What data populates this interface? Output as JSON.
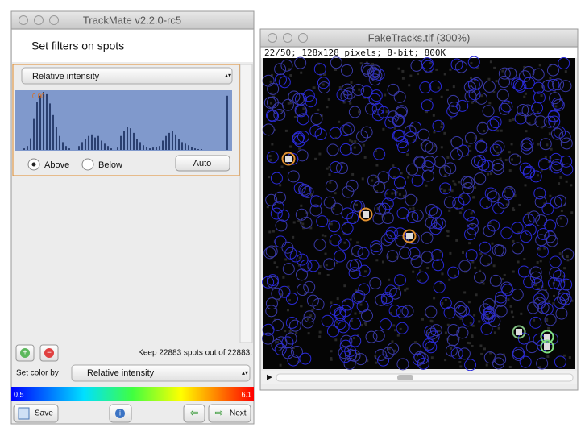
{
  "main_window": {
    "title": "TrackMate v2.2.0-rc5",
    "heading": "Set filters on spots",
    "feature_dropdown": "Relative intensity",
    "histogram": {
      "threshold_label": "0.00",
      "counts": [
        0,
        0,
        2,
        5,
        15,
        40,
        62,
        70,
        75,
        72,
        60,
        45,
        30,
        18,
        10,
        5,
        2,
        0,
        0,
        5,
        10,
        14,
        18,
        20,
        16,
        18,
        12,
        8,
        5,
        2,
        0,
        3,
        18,
        25,
        30,
        28,
        22,
        14,
        10,
        6,
        4,
        2,
        3,
        4,
        5,
        12,
        18,
        22,
        25,
        20,
        14,
        10,
        8,
        6,
        4,
        2,
        1,
        1,
        0,
        0,
        0,
        0,
        0,
        0,
        0,
        70
      ]
    },
    "above": "Above",
    "below": "Below",
    "auto": "Auto",
    "keep_text": "Keep 22883 spots out of  22883.",
    "color_by_label": "Set color by",
    "color_by_dropdown": "Relative intensity",
    "colorbar_min": "0.5",
    "colorbar_max": "6.1",
    "save": "Save",
    "next": "Next"
  },
  "image_window": {
    "title": "FakeTracks.tif (300%)",
    "info": "22/50; 128x128 pixels; 8-bit; 800K"
  }
}
